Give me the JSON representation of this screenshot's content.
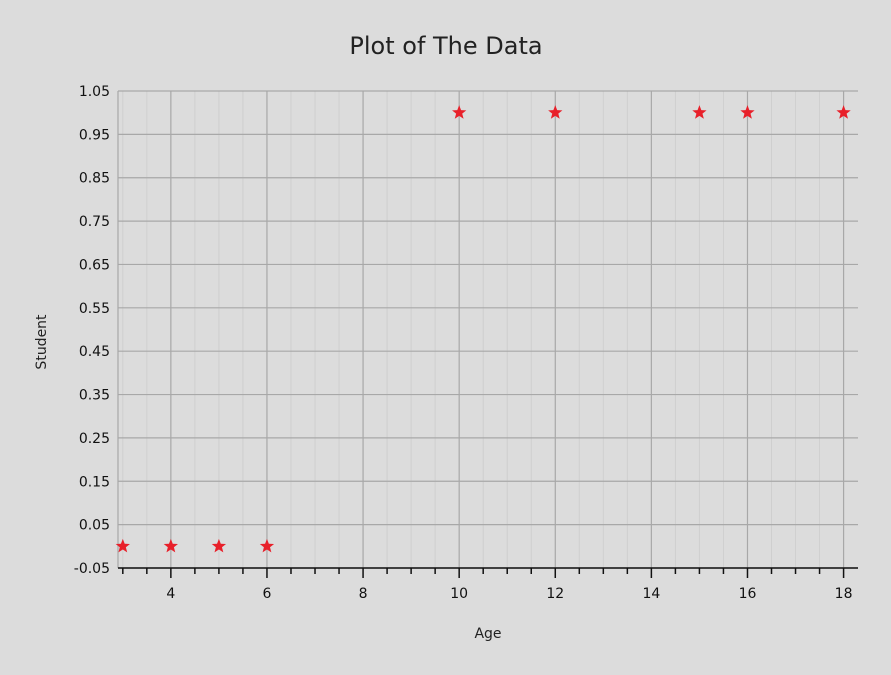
{
  "chart_data": {
    "type": "scatter",
    "title": "Plot of The Data",
    "xlabel": "Age",
    "ylabel": "Student",
    "xlim": [
      2.9,
      18.3
    ],
    "ylim": [
      -0.05,
      1.05
    ],
    "x_ticks": [
      4,
      6,
      8,
      10,
      12,
      14,
      16,
      18
    ],
    "y_ticks": [
      "-0.05",
      "0.05",
      "0.15",
      "0.25",
      "0.35",
      "0.45",
      "0.55",
      "0.65",
      "0.75",
      "0.85",
      "0.95",
      "1.05"
    ],
    "grid": true,
    "marker": "star",
    "colors": {
      "marker": "#e8202a",
      "background": "#dcdcdc",
      "grid_major": "#a8a8a8",
      "grid_minor": "#cfcfcf",
      "axis": "#111111"
    },
    "series": [
      {
        "x": [
          3,
          4,
          5,
          6,
          10,
          12,
          15,
          16,
          18
        ],
        "y": [
          0,
          0,
          0,
          0,
          1,
          1,
          1,
          1,
          1
        ]
      }
    ]
  }
}
